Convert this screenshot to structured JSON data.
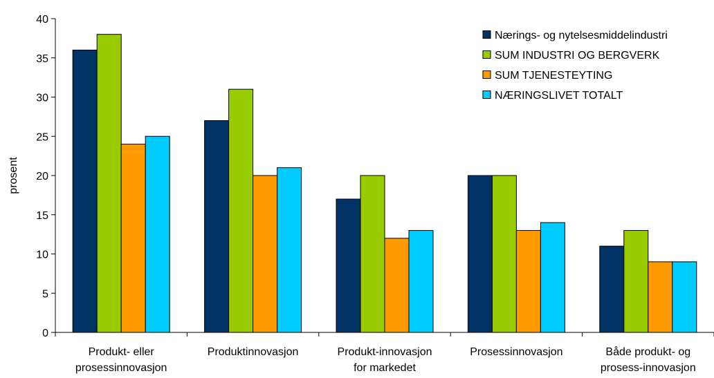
{
  "chart_data": {
    "type": "bar",
    "title": "",
    "xlabel": "",
    "ylabel": "prosent",
    "ylim": [
      0,
      40
    ],
    "yticks": [
      0,
      5,
      10,
      15,
      20,
      25,
      30,
      35,
      40
    ],
    "grid": false,
    "legend_position": "top-right",
    "categories": [
      [
        "Produkt- eller",
        "prosessinnovasjon"
      ],
      [
        "Produktinnovasjon"
      ],
      [
        "Produkt-innovasjon",
        "for markedet"
      ],
      [
        "Prosessinnovasjon"
      ],
      [
        "Både produkt- og",
        "prosess-innovasjon"
      ]
    ],
    "series": [
      {
        "name": "Nærings- og nytelsesmiddelindustri",
        "color": "#003366",
        "values": [
          36,
          27,
          17,
          20,
          11
        ]
      },
      {
        "name": "SUM INDUSTRI OG BERGVERK",
        "color": "#99CC00",
        "values": [
          38,
          31,
          20,
          20,
          13
        ]
      },
      {
        "name": "SUM TJENESTEYTING",
        "color": "#FF9900",
        "values": [
          24,
          20,
          12,
          13,
          9
        ]
      },
      {
        "name": "NÆRINGSLIVET TOTALT",
        "color": "#00CCFF",
        "values": [
          25,
          21,
          13,
          14,
          9
        ]
      }
    ]
  }
}
